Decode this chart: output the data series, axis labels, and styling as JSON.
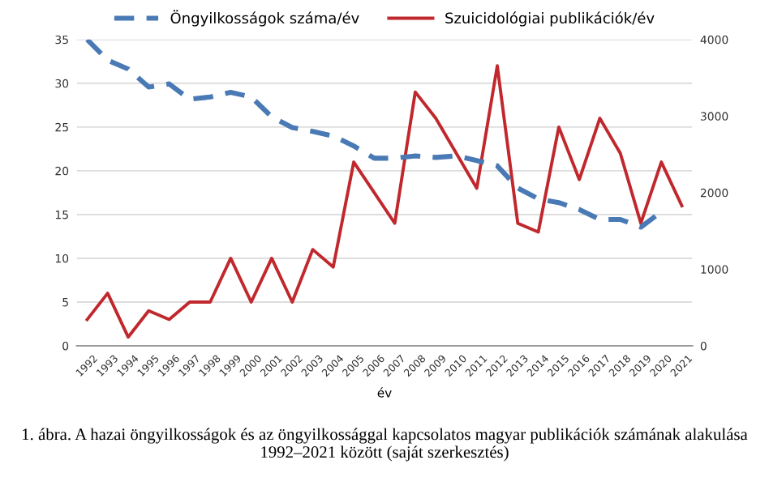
{
  "chart_data": {
    "type": "line",
    "categories": [
      "1992",
      "1993",
      "1994",
      "1995",
      "1996",
      "1997",
      "1998",
      "1999",
      "2000",
      "2001",
      "2002",
      "2003",
      "2004",
      "2005",
      "2006",
      "2007",
      "2008",
      "2009",
      "2010",
      "2011",
      "2012",
      "2013",
      "2014",
      "2015",
      "2016",
      "2017",
      "2018",
      "2019",
      "2020",
      "2021"
    ],
    "series": [
      {
        "name": "Öngyilkosságok száma/év",
        "color": "#4a7ab5",
        "axis": "y2",
        "line_style": "dashed",
        "values": [
          4000,
          3730,
          3615,
          3380,
          3420,
          3220,
          3250,
          3310,
          3250,
          2990,
          2850,
          2800,
          2740,
          2610,
          2450,
          2450,
          2480,
          2460,
          2480,
          2420,
          2350,
          2060,
          1920,
          1870,
          1780,
          1650,
          1650,
          1550,
          1750,
          null
        ]
      },
      {
        "name": "Szuicidológiai publikációk/év",
        "color": "#c0282d",
        "axis": "y",
        "line_style": "solid",
        "values": [
          3,
          6,
          1,
          4,
          3,
          5,
          5,
          10,
          5,
          10,
          5,
          11,
          9,
          21,
          17.5,
          14,
          29,
          26,
          22,
          18,
          32,
          14,
          13,
          25,
          19,
          26,
          22,
          14,
          21,
          16
        ]
      }
    ],
    "xlabel": "év",
    "ylim": [
      0,
      35
    ],
    "yticks": [
      0,
      5,
      10,
      15,
      20,
      25,
      30,
      35
    ],
    "y2lim": [
      0,
      4000
    ],
    "y2ticks": [
      0,
      1000,
      2000,
      3000,
      4000
    ],
    "grid": "y",
    "legend": "top",
    "marker": "none",
    "annotations": [
      "1. ábra. A hazai öngyilkosságok és az öngyilkossággal kapcsolatos magyar publikációk számának alakulása 1992–2021 között (saját szerkesztés)"
    ]
  }
}
